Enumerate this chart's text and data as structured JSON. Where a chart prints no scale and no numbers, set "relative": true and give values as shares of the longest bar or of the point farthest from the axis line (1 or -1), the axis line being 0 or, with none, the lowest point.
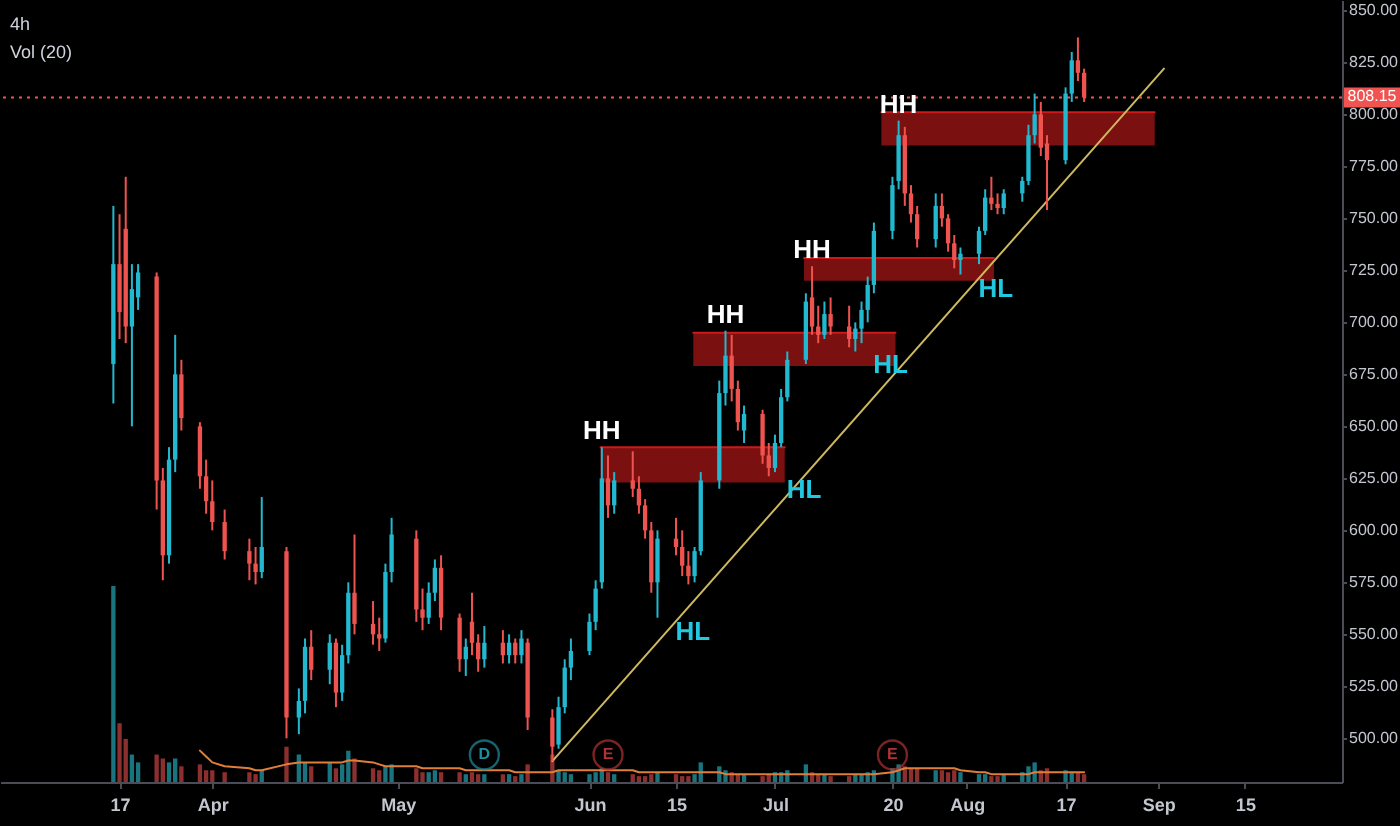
{
  "chart_data": [
    {
      "type": "candlestick",
      "title": "4h",
      "subtitle": "Vol (20)",
      "tick_labels": "y",
      "x": [
        "--03-16",
        "--03-17",
        "--03-18",
        "--03-19",
        "--03-20",
        "--03-23",
        "--03-24",
        "--03-25",
        "--03-26",
        "--03-27",
        "--03-30",
        "--03-31",
        "--04-01",
        "--04-03",
        "--04-07",
        "--04-08",
        "--04-09",
        "--04-13",
        "--04-15",
        "--04-16",
        "--04-17",
        "--04-20",
        "--04-21",
        "--04-22",
        "--04-23",
        "--04-24",
        "--04-27",
        "--04-28",
        "--04-29",
        "--04-30",
        "--05-04",
        "--05-05",
        "--05-06",
        "--05-07",
        "--05-08",
        "--05-11",
        "--05-12",
        "--05-13",
        "--05-14",
        "--05-15",
        "--05-18",
        "--05-19",
        "--05-20",
        "--05-21",
        "--05-22",
        "--05-26",
        "--05-27",
        "--05-28",
        "--05-29",
        "--06-01",
        "--06-02",
        "--06-03",
        "--06-04",
        "--06-05",
        "--06-08",
        "--06-09",
        "--06-10",
        "--06-11",
        "--06-12",
        "--06-15",
        "--06-16",
        "--06-17",
        "--06-18",
        "--06-19",
        "--06-22",
        "--06-23",
        "--06-24",
        "--06-25",
        "--06-26",
        "--06-29",
        "--06-30",
        "--07-01",
        "--07-02",
        "--07-03",
        "--07-06",
        "--07-07",
        "--07-08",
        "--07-09",
        "--07-10",
        "--07-13",
        "--07-14",
        "--07-15",
        "--07-16",
        "--07-17",
        "--07-20",
        "--07-21",
        "--07-22",
        "--07-23",
        "--07-24",
        "--07-27",
        "--07-28",
        "--07-29",
        "--07-30",
        "--07-31",
        "--08-03",
        "--08-04",
        "--08-05",
        "--08-06",
        "--08-07",
        "--08-10",
        "--08-11",
        "--08-12",
        "--08-13",
        "--08-14",
        "--08-17",
        "--08-18",
        "--08-19",
        "--08-20"
      ],
      "ohlc": [
        [
          680,
          756,
          661,
          728
        ],
        [
          728,
          752,
          692,
          705
        ],
        [
          745,
          770,
          690,
          698
        ],
        [
          698,
          728,
          650,
          716
        ],
        [
          712,
          728,
          706,
          724
        ],
        [
          722,
          724,
          610,
          624
        ],
        [
          624,
          630,
          576,
          588
        ],
        [
          588,
          640,
          584,
          634
        ],
        [
          634,
          694,
          628,
          675
        ],
        [
          675,
          682,
          648,
          654
        ],
        [
          650,
          652,
          620,
          626
        ],
        [
          626,
          634,
          608,
          614
        ],
        [
          614,
          624,
          600,
          604
        ],
        [
          604,
          610,
          586,
          590
        ],
        [
          590,
          596,
          576,
          584
        ],
        [
          584,
          592,
          574,
          580
        ],
        [
          580,
          616,
          577,
          592
        ],
        [
          590,
          592,
          500,
          510
        ],
        [
          510,
          524,
          502,
          518
        ],
        [
          518,
          548,
          512,
          544
        ],
        [
          544,
          552,
          528,
          533
        ],
        [
          533,
          550,
          526,
          546
        ],
        [
          546,
          548,
          515,
          522
        ],
        [
          522,
          545,
          518,
          540
        ],
        [
          540,
          575,
          536,
          570
        ],
        [
          570,
          598,
          550,
          555
        ],
        [
          555,
          566,
          545,
          550
        ],
        [
          550,
          558,
          542,
          548
        ],
        [
          548,
          584,
          546,
          580
        ],
        [
          580,
          606,
          575,
          598
        ],
        [
          596,
          600,
          556,
          562
        ],
        [
          562,
          572,
          552,
          558
        ],
        [
          558,
          575,
          555,
          570
        ],
        [
          570,
          586,
          566,
          582
        ],
        [
          582,
          588,
          552,
          558
        ],
        [
          558,
          560,
          532,
          538
        ],
        [
          538,
          548,
          530,
          544
        ],
        [
          556,
          570,
          540,
          546
        ],
        [
          546,
          550,
          532,
          538
        ],
        [
          538,
          554,
          534,
          546
        ],
        [
          546,
          552,
          536,
          540
        ],
        [
          540,
          550,
          536,
          546
        ],
        [
          546,
          548,
          536,
          540
        ],
        [
          540,
          552,
          536,
          548
        ],
        [
          546,
          548,
          504,
          510
        ],
        [
          510,
          514,
          489,
          496
        ],
        [
          497,
          520,
          495,
          515
        ],
        [
          515,
          538,
          512,
          534
        ],
        [
          534,
          548,
          528,
          542
        ],
        [
          542,
          560,
          540,
          556
        ],
        [
          556,
          576,
          552,
          572
        ],
        [
          575,
          640,
          572,
          625
        ],
        [
          625,
          636,
          606,
          612
        ],
        [
          612,
          628,
          608,
          624
        ],
        [
          624,
          638,
          616,
          620
        ],
        [
          620,
          626,
          608,
          612
        ],
        [
          612,
          615,
          596,
          600
        ],
        [
          600,
          604,
          570,
          575
        ],
        [
          575,
          600,
          558,
          596
        ],
        [
          596,
          606,
          588,
          592
        ],
        [
          592,
          600,
          578,
          583
        ],
        [
          583,
          590,
          574,
          578
        ],
        [
          578,
          592,
          575,
          590
        ],
        [
          590,
          628,
          588,
          624
        ],
        [
          624,
          672,
          620,
          666
        ],
        [
          666,
          696,
          660,
          684
        ],
        [
          684,
          694,
          662,
          668
        ],
        [
          668,
          672,
          648,
          652
        ],
        [
          648,
          660,
          642,
          656
        ],
        [
          656,
          658,
          632,
          636
        ],
        [
          636,
          642,
          626,
          630
        ],
        [
          630,
          646,
          628,
          642
        ],
        [
          642,
          668,
          640,
          664
        ],
        [
          664,
          686,
          662,
          682
        ],
        [
          682,
          714,
          680,
          710
        ],
        [
          712,
          727,
          694,
          698
        ],
        [
          698,
          708,
          690,
          694
        ],
        [
          694,
          710,
          692,
          704
        ],
        [
          704,
          712,
          694,
          698
        ],
        [
          698,
          708,
          688,
          692
        ],
        [
          692,
          700,
          686,
          697
        ],
        [
          697,
          710,
          690,
          706
        ],
        [
          706,
          722,
          700,
          718
        ],
        [
          718,
          748,
          714,
          744
        ],
        [
          744,
          770,
          740,
          766
        ],
        [
          768,
          797,
          764,
          790
        ],
        [
          790,
          794,
          756,
          762
        ],
        [
          762,
          766,
          748,
          752
        ],
        [
          752,
          756,
          736,
          740
        ],
        [
          740,
          762,
          736,
          756
        ],
        [
          756,
          762,
          746,
          750
        ],
        [
          750,
          752,
          734,
          738
        ],
        [
          738,
          742,
          726,
          730
        ],
        [
          730,
          736,
          723,
          733
        ],
        [
          733,
          746,
          728,
          744
        ],
        [
          744,
          764,
          742,
          760
        ],
        [
          760,
          770,
          754,
          757
        ],
        [
          757,
          762,
          752,
          755
        ],
        [
          755,
          764,
          752,
          762
        ],
        [
          762,
          770,
          758,
          768
        ],
        [
          768,
          795,
          766,
          790
        ],
        [
          790,
          810,
          786,
          800
        ],
        [
          800,
          806,
          780,
          784
        ],
        [
          786,
          790,
          754,
          778
        ],
        [
          778,
          813,
          776,
          810
        ],
        [
          810,
          830,
          806,
          826
        ],
        [
          826,
          837,
          816,
          820
        ],
        [
          820,
          822,
          806,
          808.15
        ]
      ],
      "colors": [
        "#22b8cf",
        "#ef5350",
        "#ef5350",
        "#22b8cf",
        "#22b8cf",
        "#ef5350",
        "#ef5350",
        "#22b8cf",
        "#22b8cf",
        "#ef5350",
        "#ef5350",
        "#ef5350",
        "#ef5350",
        "#ef5350",
        "#ef5350",
        "#ef5350",
        "#22b8cf",
        "#ef5350",
        "#22b8cf",
        "#22b8cf",
        "#ef5350",
        "#22b8cf",
        "#ef5350",
        "#22b8cf",
        "#22b8cf",
        "#ef5350",
        "#ef5350",
        "#ef5350",
        "#22b8cf",
        "#22b8cf",
        "#ef5350",
        "#ef5350",
        "#22b8cf",
        "#22b8cf",
        "#ef5350",
        "#ef5350",
        "#22b8cf",
        "#ef5350",
        "#ef5350",
        "#22b8cf",
        "#ef5350",
        "#22b8cf",
        "#ef5350",
        "#22b8cf",
        "#ef5350",
        "#ef5350",
        "#22b8cf",
        "#22b8cf",
        "#22b8cf",
        "#22b8cf",
        "#22b8cf",
        "#22b8cf",
        "#ef5350",
        "#22b8cf",
        "#ef5350",
        "#ef5350",
        "#ef5350",
        "#ef5350",
        "#22b8cf",
        "#ef5350",
        "#ef5350",
        "#ef5350",
        "#22b8cf",
        "#22b8cf",
        "#22b8cf",
        "#22b8cf",
        "#ef5350",
        "#ef5350",
        "#22b8cf",
        "#ef5350",
        "#ef5350",
        "#22b8cf",
        "#22b8cf",
        "#22b8cf",
        "#22b8cf",
        "#ef5350",
        "#ef5350",
        "#22b8cf",
        "#ef5350",
        "#ef5350",
        "#22b8cf",
        "#22b8cf",
        "#22b8cf",
        "#22b8cf",
        "#22b8cf",
        "#22b8cf",
        "#ef5350",
        "#ef5350",
        "#ef5350",
        "#22b8cf",
        "#ef5350",
        "#ef5350",
        "#ef5350",
        "#22b8cf",
        "#22b8cf",
        "#22b8cf",
        "#ef5350",
        "#ef5350",
        "#22b8cf",
        "#22b8cf",
        "#22b8cf",
        "#22b8cf",
        "#ef5350",
        "#ef5350",
        "#22b8cf",
        "#22b8cf",
        "#ef5350",
        "#ef5350"
      ],
      "series": [
        {
          "type": "line",
          "x": [
            "--06-02T19:00",
            "--07-02T14:00"
          ],
          "values": [
            640,
            640
          ],
          "lower": [
            623,
            623
          ],
          "upper": [
            640,
            640
          ],
          "color": "#cc1a1a"
        },
        {
          "type": "line",
          "x": [
            "--06-17T19:00",
            "--07-20T12:00"
          ],
          "values": [
            695,
            695
          ],
          "lower": [
            679,
            679
          ],
          "upper": [
            695,
            695
          ],
          "color": "#cc1a1a"
        },
        {
          "type": "line",
          "x": [
            "--07-05T17:00",
            "--08-05T10:00"
          ],
          "values": [
            731,
            731
          ],
          "lower": [
            720,
            720
          ],
          "upper": [
            731,
            731
          ],
          "color": "#cc1a1a"
        },
        {
          "type": "line",
          "x": [
            "--07-18T05:00",
            "--08-31T10:00"
          ],
          "values": [
            801,
            801
          ],
          "lower": [
            785,
            785
          ],
          "upper": [
            801,
            801
          ],
          "color": "#cc1a1a"
        },
        {
          "type": "line",
          "x": [
            "--05-26",
            "--09-01T22:00"
          ],
          "values": [
            489,
            822
          ],
          "color": "#cdb85e"
        },
        {
          "type": "scatter",
          "x": [
            "--05-15",
            "--06-04",
            "--07-20"
          ],
          "values": [
            492,
            492,
            492
          ],
          "colors": [
            "#1e8ea0",
            "#b03232",
            "#b03232"
          ],
          "marker": "circle",
          "value_labels": [
            "D",
            "E",
            "E"
          ]
        }
      ],
      "xlim": [
        "--02-25T16:00",
        "--09-30T17:00"
      ],
      "ylim": [
        479,
        855
      ],
      "yticks": [
        {
          "value": 500,
          "label": "500.00"
        },
        {
          "value": 525,
          "label": "525.00"
        },
        {
          "value": 550,
          "label": "550.00"
        },
        {
          "value": 575,
          "label": "575.00"
        },
        {
          "value": 600,
          "label": "600.00"
        },
        {
          "value": 625,
          "label": "625.00"
        },
        {
          "value": 650,
          "label": "650.00"
        },
        {
          "value": 675,
          "label": "675.00"
        },
        {
          "value": 700,
          "label": "700.00"
        },
        {
          "value": 725,
          "label": "725.00"
        },
        {
          "value": 750,
          "label": "750.00"
        },
        {
          "value": 775,
          "label": "775.00"
        },
        {
          "value": 800,
          "label": "800.00"
        },
        {
          "value": 825,
          "label": "825.00"
        },
        {
          "value": 850,
          "label": "850.00"
        }
      ],
      "ref_lines": [
        {
          "axis": "y",
          "value": 808.15,
          "label": "808.15",
          "color": "#f05350",
          "line_style": "dotted"
        }
      ],
      "annotations": [
        {
          "text": "HH",
          "x": "--06-03",
          "y": 640
        },
        {
          "text": "HH",
          "x": "--06-23",
          "y": 696
        },
        {
          "text": "HH",
          "x": "--07-07",
          "y": 727
        },
        {
          "text": "HH",
          "x": "--07-21",
          "y": 797
        },
        {
          "text": "HL",
          "x": "--06-12",
          "y": 558
        },
        {
          "text": "HL",
          "x": "--06-30",
          "y": 626
        },
        {
          "text": "HL",
          "x": "--07-14",
          "y": 686
        },
        {
          "text": "HL",
          "x": "--07-31",
          "y": 723
        }
      ]
    },
    {
      "type": "bar",
      "relative": true,
      "x": [
        "--03-16",
        "--03-17",
        "--03-18",
        "--03-19",
        "--03-20",
        "--03-23",
        "--03-24",
        "--03-25",
        "--03-26",
        "--03-27",
        "--03-30",
        "--03-31",
        "--04-01",
        "--04-03",
        "--04-07",
        "--04-08",
        "--04-09",
        "--04-13",
        "--04-15",
        "--04-16",
        "--04-17",
        "--04-20",
        "--04-21",
        "--04-22",
        "--04-23",
        "--04-24",
        "--04-27",
        "--04-28",
        "--04-29",
        "--04-30",
        "--05-04",
        "--05-05",
        "--05-06",
        "--05-07",
        "--05-08",
        "--05-11",
        "--05-12",
        "--05-13",
        "--05-14",
        "--05-15",
        "--05-18",
        "--05-19",
        "--05-20",
        "--05-21",
        "--05-22",
        "--05-26",
        "--05-27",
        "--05-28",
        "--05-29",
        "--06-01",
        "--06-02",
        "--06-03",
        "--06-04",
        "--06-05",
        "--06-08",
        "--06-09",
        "--06-10",
        "--06-11",
        "--06-12",
        "--06-15",
        "--06-16",
        "--06-17",
        "--06-18",
        "--06-19",
        "--06-22",
        "--06-23",
        "--06-24",
        "--06-25",
        "--06-26",
        "--06-29",
        "--06-30",
        "--07-01",
        "--07-02",
        "--07-03",
        "--07-06",
        "--07-07",
        "--07-08",
        "--07-09",
        "--07-10",
        "--07-13",
        "--07-14",
        "--07-15",
        "--07-16",
        "--07-17",
        "--07-20",
        "--07-21",
        "--07-22",
        "--07-23",
        "--07-24",
        "--07-27",
        "--07-28",
        "--07-29",
        "--07-30",
        "--07-31",
        "--08-03",
        "--08-04",
        "--08-05",
        "--08-06",
        "--08-07",
        "--08-10",
        "--08-11",
        "--08-12",
        "--08-13",
        "--08-14",
        "--08-17",
        "--08-18",
        "--08-19",
        "--08-20"
      ],
      "xlim": [
        "--02-25T16:00",
        "--09-30T17:00"
      ],
      "xticks": [
        {
          "value": "--03-17",
          "label": "17"
        },
        {
          "value": "--04-01",
          "label": "Apr"
        },
        {
          "value": "--05-01",
          "label": "May"
        },
        {
          "value": "--06-01",
          "label": "Jun"
        },
        {
          "value": "--06-15",
          "label": "15"
        },
        {
          "value": "--07-01",
          "label": "Jul"
        },
        {
          "value": "--07-20",
          "label": "20"
        },
        {
          "value": "--08-01",
          "label": "Aug"
        },
        {
          "value": "--08-17",
          "label": "17"
        },
        {
          "value": "--09-01",
          "label": "Sep"
        },
        {
          "value": "--09-15",
          "label": "15"
        }
      ],
      "series": [
        {
          "type": "bar",
          "values": [
            1,
            0.3,
            0.22,
            0.14,
            0.1,
            0.14,
            0.12,
            0.1,
            0.12,
            0.08,
            0.09,
            0.06,
            0.06,
            0.05,
            0.05,
            0.04,
            0.06,
            0.18,
            0.14,
            0.1,
            0.08,
            0.1,
            0.07,
            0.09,
            0.16,
            0.12,
            0.07,
            0.06,
            0.08,
            0.09,
            0.07,
            0.05,
            0.05,
            0.06,
            0.05,
            0.05,
            0.04,
            0.05,
            0.04,
            0.04,
            0.04,
            0.04,
            0.03,
            0.04,
            0.09,
            0.14,
            0.06,
            0.05,
            0.04,
            0.04,
            0.05,
            0.07,
            0.05,
            0.04,
            0.04,
            0.03,
            0.03,
            0.04,
            0.05,
            0.04,
            0.03,
            0.03,
            0.04,
            0.1,
            0.08,
            0.06,
            0.05,
            0.04,
            0.04,
            0.03,
            0.04,
            0.05,
            0.05,
            0.06,
            0.09,
            0.05,
            0.04,
            0.04,
            0.03,
            0.03,
            0.04,
            0.04,
            0.05,
            0.06,
            0.07,
            0.09,
            0.08,
            0.07,
            0.07,
            0.06,
            0.06,
            0.05,
            0.06,
            0.05,
            0.04,
            0.04,
            0.03,
            0.03,
            0.04,
            0.05,
            0.08,
            0.1,
            0.06,
            0.07,
            0.06,
            0.05,
            0.05,
            0.04
          ],
          "colors": [
            "#1a7480",
            "#8c2f2f",
            "#8c2f2f",
            "#1a7480",
            "#1a7480",
            "#8c2f2f",
            "#8c2f2f",
            "#1a7480",
            "#1a7480",
            "#8c2f2f",
            "#8c2f2f",
            "#8c2f2f",
            "#8c2f2f",
            "#8c2f2f",
            "#8c2f2f",
            "#8c2f2f",
            "#1a7480",
            "#8c2f2f",
            "#1a7480",
            "#1a7480",
            "#8c2f2f",
            "#1a7480",
            "#8c2f2f",
            "#1a7480",
            "#1a7480",
            "#8c2f2f",
            "#8c2f2f",
            "#8c2f2f",
            "#1a7480",
            "#1a7480",
            "#8c2f2f",
            "#8c2f2f",
            "#1a7480",
            "#1a7480",
            "#8c2f2f",
            "#8c2f2f",
            "#1a7480",
            "#8c2f2f",
            "#8c2f2f",
            "#1a7480",
            "#8c2f2f",
            "#1a7480",
            "#8c2f2f",
            "#1a7480",
            "#8c2f2f",
            "#8c2f2f",
            "#1a7480",
            "#1a7480",
            "#1a7480",
            "#1a7480",
            "#1a7480",
            "#1a7480",
            "#8c2f2f",
            "#1a7480",
            "#8c2f2f",
            "#8c2f2f",
            "#8c2f2f",
            "#8c2f2f",
            "#1a7480",
            "#8c2f2f",
            "#8c2f2f",
            "#8c2f2f",
            "#1a7480",
            "#1a7480",
            "#1a7480",
            "#1a7480",
            "#8c2f2f",
            "#8c2f2f",
            "#1a7480",
            "#8c2f2f",
            "#8c2f2f",
            "#1a7480",
            "#1a7480",
            "#1a7480",
            "#1a7480",
            "#8c2f2f",
            "#8c2f2f",
            "#1a7480",
            "#8c2f2f",
            "#8c2f2f",
            "#1a7480",
            "#1a7480",
            "#1a7480",
            "#1a7480",
            "#1a7480",
            "#1a7480",
            "#8c2f2f",
            "#8c2f2f",
            "#8c2f2f",
            "#1a7480",
            "#8c2f2f",
            "#8c2f2f",
            "#8c2f2f",
            "#1a7480",
            "#1a7480",
            "#1a7480",
            "#8c2f2f",
            "#8c2f2f",
            "#1a7480",
            "#1a7480",
            "#1a7480",
            "#1a7480",
            "#8c2f2f",
            "#8c2f2f",
            "#1a7480",
            "#1a7480",
            "#8c2f2f",
            "#8c2f2f"
          ]
        },
        {
          "type": "line",
          "values": [
            null,
            null,
            null,
            null,
            null,
            null,
            null,
            null,
            null,
            null,
            0.16,
            0.13,
            0.1,
            0.08,
            0.07,
            0.06,
            0.06,
            0.09,
            0.1,
            0.1,
            0.1,
            0.1,
            0.1,
            0.1,
            0.11,
            0.11,
            0.1,
            0.09,
            0.08,
            0.08,
            0.08,
            0.07,
            0.07,
            0.07,
            0.07,
            0.07,
            0.06,
            0.06,
            0.06,
            0.06,
            0.06,
            0.06,
            0.05,
            0.05,
            0.05,
            0.05,
            0.06,
            0.06,
            0.06,
            0.06,
            0.06,
            0.06,
            0.06,
            0.06,
            0.06,
            0.05,
            0.05,
            0.05,
            0.05,
            0.05,
            0.05,
            0.05,
            0.05,
            0.05,
            0.05,
            0.04,
            0.04,
            0.04,
            0.04,
            0.04,
            0.04,
            0.04,
            0.04,
            0.04,
            0.04,
            0.04,
            0.04,
            0.04,
            0.04,
            0.04,
            0.04,
            0.04,
            0.04,
            0.04,
            0.05,
            0.06,
            0.07,
            0.07,
            0.07,
            0.07,
            0.07,
            0.07,
            0.07,
            0.06,
            0.05,
            0.05,
            0.04,
            0.04,
            0.04,
            0.04,
            0.04,
            0.05,
            0.05,
            0.05,
            0.05,
            0.05,
            0.05,
            0.05
          ],
          "color": "#e07f3a"
        }
      ]
    }
  ]
}
